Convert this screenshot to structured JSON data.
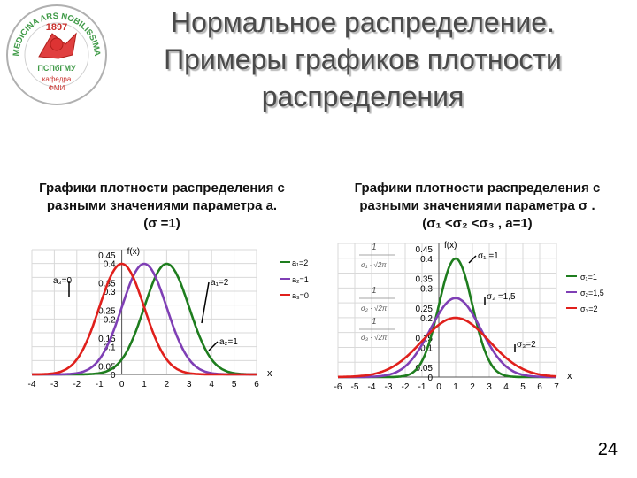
{
  "slide": {
    "title_lines": [
      "Нормальное распределение.",
      "Примеры графиков плотности",
      "распределения"
    ],
    "page_number": "24"
  },
  "logo": {
    "top_text": "MEDICINA ARS NOBILISSIMA",
    "year": "1897",
    "name": "ПСПбГМУ",
    "dept_lines": [
      "кафедра",
      "ФМИ"
    ]
  },
  "left_panel": {
    "caption_lines": [
      "Графики плотности распределения с",
      "разными значениями параметра a.",
      "(σ =1)"
    ]
  },
  "right_panel": {
    "caption_lines": [
      "Графики плотности распределения с",
      "разными значениями параметра σ .",
      "(σ₁ <σ₂ <σ₃ ,   a=1)"
    ]
  },
  "chart_data": [
    {
      "type": "line",
      "title": "",
      "ylabel": "f(x)",
      "xlabel": "x",
      "xlim": [
        -4,
        6
      ],
      "ylim": [
        0,
        0.45
      ],
      "x_ticks": [
        -4,
        -3,
        -2,
        -1,
        0,
        1,
        2,
        3,
        4,
        5,
        6
      ],
      "y_ticks": [
        0,
        0.05,
        0.1,
        0.15,
        0.2,
        0.25,
        0.3,
        0.35,
        0.4,
        0.45
      ],
      "y_tick_labels": [
        "0",
        "0.05",
        "0.1",
        "0.15",
        "0.2",
        "0.25",
        "0.3",
        "0.35",
        "0.4",
        "0.45"
      ],
      "legend_position": "right",
      "series": [
        {
          "name": "a₁=2",
          "mu": 2,
          "sigma": 1,
          "color": "#1e7d1e"
        },
        {
          "name": "a₂=1",
          "mu": 1,
          "sigma": 1,
          "color": "#7f3fb5"
        },
        {
          "name": "a₃=0",
          "mu": 0,
          "sigma": 1,
          "color": "#e0201c"
        }
      ],
      "annotations": [
        {
          "text": "a₃=0",
          "x": -2.6,
          "y": 0.33
        },
        {
          "text": "a₁=2",
          "x": 3.8,
          "y": 0.34
        },
        {
          "text": "a₂=1",
          "x": 3.9,
          "y": 0.11
        }
      ]
    },
    {
      "type": "line",
      "title": "",
      "ylabel": "f(x)",
      "xlabel": "x",
      "xlim": [
        -6,
        7
      ],
      "ylim": [
        0,
        0.45
      ],
      "x_ticks": [
        -6,
        -5,
        -4,
        -3,
        -2,
        -1,
        0,
        1,
        2,
        3,
        4,
        5,
        6,
        7
      ],
      "y_ticks": [
        0,
        0.05,
        0.1,
        0.15,
        0.2,
        0.25,
        0.3,
        0.35,
        0.4,
        0.45
      ],
      "y_tick_labels": [
        "0",
        "0.05",
        "0.1",
        "0.15",
        "0.2",
        "0.25",
        "0.3",
        "0.35",
        "0.4",
        "0.45"
      ],
      "legend_position": "right",
      "series": [
        {
          "name": "σ₁=1",
          "mu": 1,
          "sigma": 1,
          "color": "#1e7d1e"
        },
        {
          "name": "σ₂=1,5",
          "mu": 1,
          "sigma": 1.5,
          "color": "#7f3fb5"
        },
        {
          "name": "σ₃=2",
          "mu": 1,
          "sigma": 2,
          "color": "#e0201c"
        }
      ],
      "annotations": [
        {
          "text": "σ₁ =1",
          "x": 2.9,
          "y": 0.41
        },
        {
          "text": "σ₂ =1,5",
          "x": 3.2,
          "y": 0.305
        },
        {
          "text": "σ₃=2",
          "x": 4.5,
          "y": 0.165
        }
      ],
      "formula_labels": [
        "1",
        "σ₁ · √2π",
        "1",
        "σ₂ · √2π",
        "1",
        "σ₃ · √2π"
      ]
    }
  ]
}
